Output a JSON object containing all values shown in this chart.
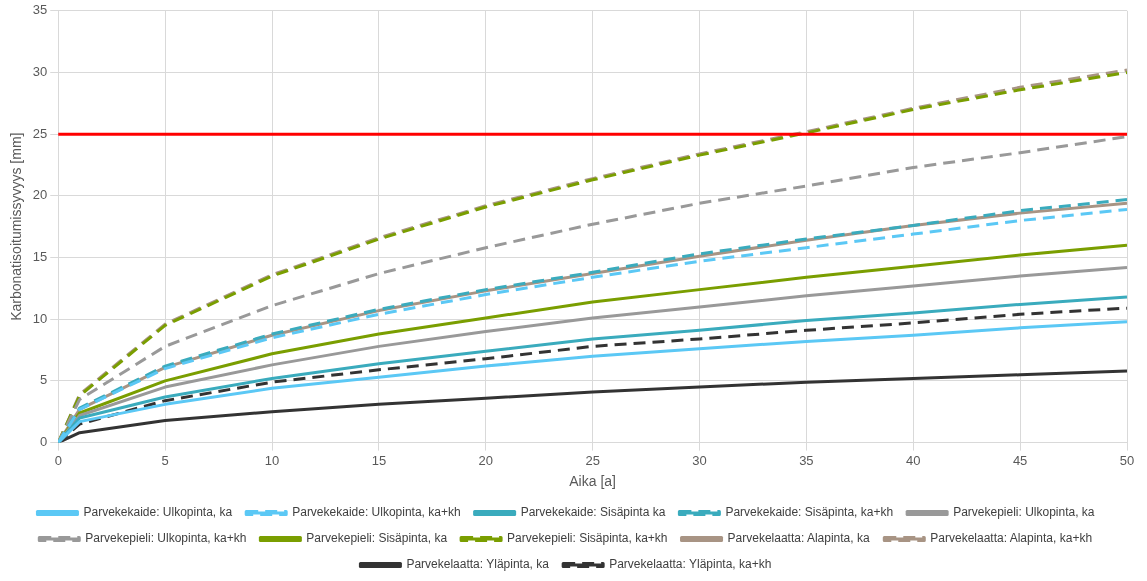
{
  "chart_data": {
    "type": "line",
    "xlabel": "Aika [a]",
    "ylabel": "Karbonatisoitumissyvyys [mm]",
    "x": [
      0,
      1,
      5,
      10,
      15,
      20,
      25,
      30,
      35,
      40,
      45,
      50
    ],
    "xlim": [
      0,
      50
    ],
    "xticks": [
      0,
      5,
      10,
      15,
      20,
      25,
      30,
      35,
      40,
      45,
      50
    ],
    "ylim": [
      0,
      35
    ],
    "yticks": [
      0,
      5,
      10,
      15,
      20,
      25,
      30,
      35
    ],
    "grid": true,
    "legend": "bottom",
    "marker": "none",
    "ref_lines": [
      {
        "axis": "y",
        "value": 25,
        "color": "#ff0000"
      }
    ],
    "series": [
      {
        "name": "Parvekekaide: Ulkopinta, ka",
        "color": "#5bc8f5",
        "line_style": "solid",
        "values": [
          0,
          1.7,
          3.1,
          4.4,
          5.3,
          6.2,
          7.0,
          7.6,
          8.2,
          8.7,
          9.3,
          9.8
        ]
      },
      {
        "name": "Parvekekaide: Ulkopinta, ka+kh",
        "color": "#5bc8f5",
        "line_style": "dashed",
        "values": [
          0,
          2.7,
          6.0,
          8.5,
          10.4,
          12.0,
          13.4,
          14.7,
          15.8,
          16.9,
          18.0,
          18.9
        ]
      },
      {
        "name": "Parvekekaide: Sisäpinta ka",
        "color": "#3aabbd",
        "line_style": "solid",
        "values": [
          0,
          2.0,
          3.7,
          5.2,
          6.4,
          7.4,
          8.4,
          9.1,
          9.9,
          10.5,
          11.2,
          11.8
        ]
      },
      {
        "name": "Parvekekaide: Sisäpinta, ka+kh",
        "color": "#3aabbd",
        "line_style": "dashed",
        "values": [
          0,
          2.8,
          6.2,
          8.8,
          10.8,
          12.4,
          13.8,
          15.3,
          16.5,
          17.6,
          18.8,
          19.7
        ]
      },
      {
        "name": "Parvekepieli: Ulkopinta, ka",
        "color": "#999999",
        "line_style": "solid",
        "values": [
          0,
          2.2,
          4.5,
          6.3,
          7.8,
          9.0,
          10.1,
          11.0,
          11.9,
          12.7,
          13.5,
          14.2
        ]
      },
      {
        "name": "Parvekepieli: Ulkopinta, ka+kh",
        "color": "#999999",
        "line_style": "dashed",
        "values": [
          0,
          3.5,
          7.8,
          11.1,
          13.7,
          15.8,
          17.7,
          19.4,
          20.8,
          22.3,
          23.5,
          24.8
        ]
      },
      {
        "name": "Parvekepieli: Sisäpinta, ka",
        "color": "#7a9e00",
        "line_style": "solid",
        "values": [
          0,
          2.4,
          5.0,
          7.2,
          8.8,
          10.1,
          11.4,
          12.4,
          13.4,
          14.3,
          15.2,
          16.0
        ]
      },
      {
        "name": "Parvekepieli: Sisäpinta, ka+kh",
        "color": "#7a9e00",
        "line_style": "dashed",
        "values": [
          0,
          3.8,
          9.5,
          13.5,
          16.5,
          19.1,
          21.3,
          23.3,
          25.1,
          27.0,
          28.6,
          30.0
        ]
      },
      {
        "name": "Parvekelaatta: Alapinta, ka",
        "color": "#a89484",
        "line_style": "solid",
        "values": [
          0,
          2.7,
          6.1,
          8.7,
          10.7,
          12.3,
          13.7,
          15.1,
          16.4,
          17.6,
          18.6,
          19.4
        ]
      },
      {
        "name": "Parvekelaatta: Alapinta, ka+kh",
        "color": "#a89484",
        "line_style": "dashed",
        "values": [
          0,
          3.9,
          9.6,
          13.6,
          16.6,
          19.2,
          21.4,
          23.4,
          25.2,
          27.1,
          28.8,
          30.2
        ]
      },
      {
        "name": "Parvekelaatta: Yläpinta, ka",
        "color": "#333333",
        "line_style": "solid",
        "values": [
          0,
          0.8,
          1.8,
          2.5,
          3.1,
          3.6,
          4.1,
          4.5,
          4.9,
          5.2,
          5.5,
          5.8
        ]
      },
      {
        "name": "Parvekelaatta: Yläpinta, ka+kh",
        "color": "#333333",
        "line_style": "dashed",
        "values": [
          0,
          1.5,
          3.4,
          4.9,
          5.9,
          6.8,
          7.8,
          8.4,
          9.1,
          9.7,
          10.4,
          10.9
        ]
      }
    ]
  }
}
